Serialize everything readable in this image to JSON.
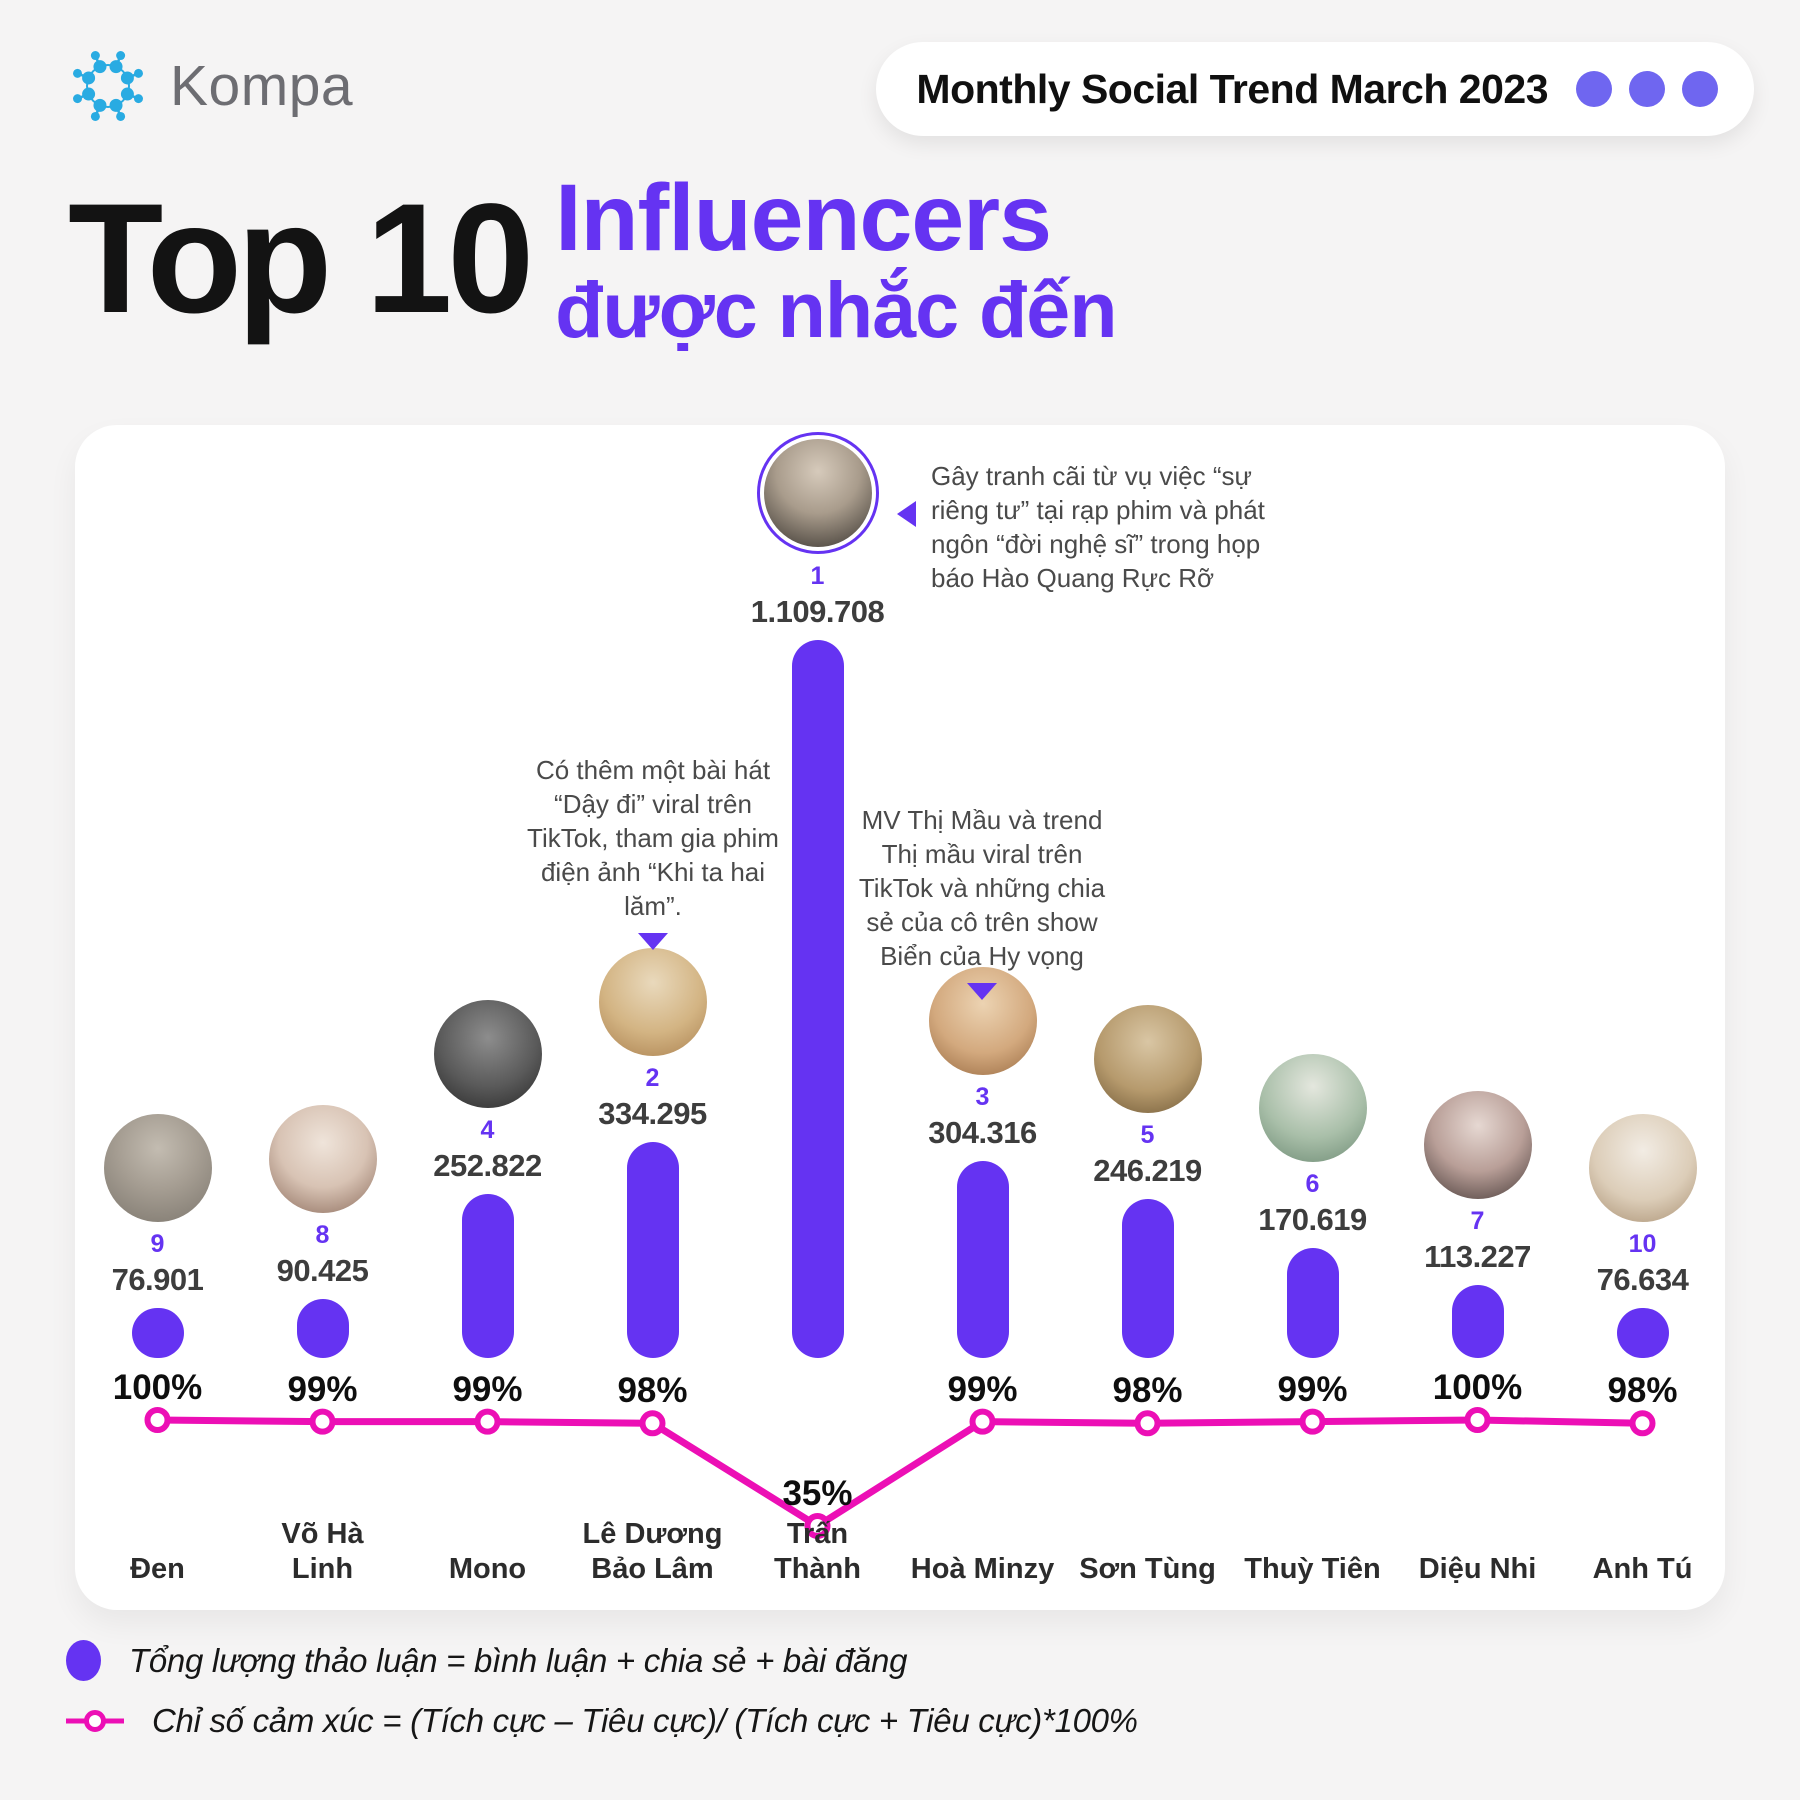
{
  "header": {
    "logo_text": "Kompa",
    "badge_text": "Monthly Social Trend March 2023"
  },
  "title": {
    "prefix": "Top 10",
    "line1": "Influencers",
    "line2": "được nhắc đến"
  },
  "chart_data": {
    "type": "combo",
    "categories": [
      "Đen",
      "Võ Hà Linh",
      "Mono",
      "Lê Dương Bảo Lâm",
      "Trấn Thành",
      "Hoà Minzy",
      "Sơn Tùng",
      "Thuỳ Tiên",
      "Diệu Nhi",
      "Anh Tú"
    ],
    "ranks": [
      9,
      8,
      4,
      2,
      1,
      3,
      5,
      6,
      7,
      10
    ],
    "series": [
      {
        "name": "Tổng lượng thảo luận",
        "type": "bar",
        "color": "#6533F2",
        "values": [
          76901,
          90425,
          252822,
          334295,
          1109708,
          304316,
          246219,
          170619,
          113227,
          76634
        ],
        "labels": [
          "76.901",
          "90.425",
          "252.822",
          "334.295",
          "1.109.708",
          "304.316",
          "246.219",
          "170.619",
          "113.227",
          "76.634"
        ]
      },
      {
        "name": "Chỉ số cảm xúc",
        "type": "line",
        "color": "#EC0FB5",
        "unit": "%",
        "values": [
          100,
          99,
          99,
          98,
          35,
          99,
          98,
          99,
          100,
          98
        ],
        "labels": [
          "100%",
          "99%",
          "99%",
          "98%",
          "35%",
          "99%",
          "98%",
          "99%",
          "100%",
          "98%"
        ]
      }
    ],
    "legend_position": "bottom",
    "grid": false
  },
  "annotations": {
    "tran_thanh": "Gây tranh cãi từ vụ việc “sự riêng tư” tại rạp phim và phát ngôn “đời nghệ sĩ” trong họp báo Hào Quang Rực Rỡ",
    "le_duong_bao_lam": "Có thêm một bài hát “Dậy đi” viral trên TikTok, tham gia phim điện ảnh “Khi ta hai lăm”.",
    "hoa_minzy": "MV Thị Mầu và trend Thị mầu viral trên TikTok và những chia sẻ của cô trên show Biển của Hy vọng"
  },
  "legend": {
    "discussion": "Tổng lượng thảo luận = bình luận + chia sẻ + bài đăng",
    "sentiment": "Chỉ số cảm xúc = (Tích cực – Tiêu cực)/ (Tích cực + Tiêu cực)*100%"
  },
  "colors": {
    "accent_purple": "#6533F2",
    "accent_magenta": "#EC0FB5",
    "logo_blue": "#29ABE2",
    "background": "#f5f4f4"
  }
}
